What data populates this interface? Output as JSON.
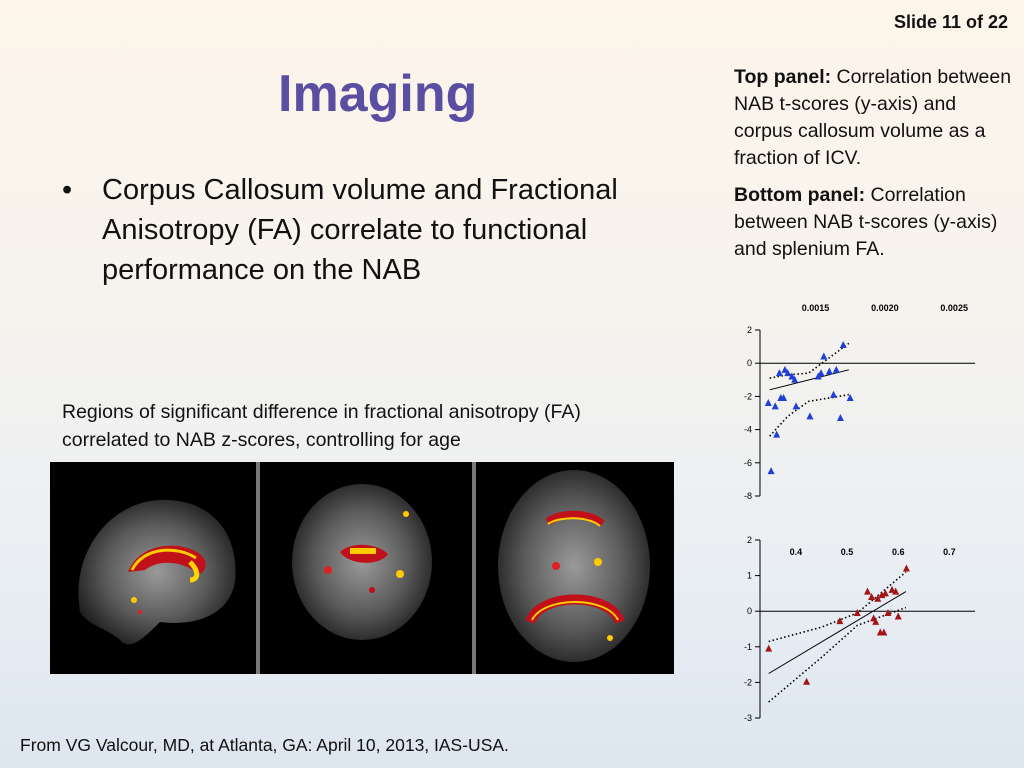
{
  "slide": {
    "number_label": "Slide 11 of 22",
    "title": "Imaging",
    "bullet": "Corpus Callosum volume and Fractional Anisotropy (FA) correlate to functional performance on the NAB",
    "image_caption": "Regions of significant difference in fractional anisotropy (FA) correlated to NAB z-scores, controlling for age",
    "top_panel": {
      "label": "Top panel:",
      "text": " Correlation between NAB t-scores (y-axis) and corpus callosum volume as a fraction of ICV."
    },
    "bottom_panel": {
      "label": "Bottom panel:",
      "text": " Correlation between NAB t-scores (y-axis) and splenium FA."
    },
    "footer": "From VG Valcour, MD, at Atlanta, GA: April 10, 2013, IAS-USA."
  },
  "colors": {
    "title": "#5a4ea3",
    "top_series": "#1f3fd6",
    "bottom_series": "#a31515"
  },
  "chart_data": [
    {
      "type": "scatter",
      "title": "",
      "xlabel": "",
      "ylabel": "",
      "x_ticks": [
        "0.0015",
        "0.0020",
        "0.0025"
      ],
      "x_tick_values": [
        0.0015,
        0.002,
        0.0025
      ],
      "y_ticks": [
        "2",
        "0",
        "-2",
        "-4",
        "-6",
        "-8"
      ],
      "xlim": [
        0.0011,
        0.00265
      ],
      "ylim": [
        -8,
        2
      ],
      "marker": "triangle",
      "color": "#1f3fd6",
      "series": [
        {
          "values": [
            [
              0.00118,
              -6.5
            ],
            [
              0.00116,
              -2.4
            ],
            [
              0.00121,
              -2.6
            ],
            [
              0.00122,
              -4.3
            ],
            [
              0.00124,
              -0.6
            ],
            [
              0.00125,
              -2.1
            ],
            [
              0.00127,
              -2.1
            ],
            [
              0.00128,
              -0.4
            ],
            [
              0.0013,
              -0.6
            ],
            [
              0.00133,
              -0.8
            ],
            [
              0.00135,
              -1.0
            ],
            [
              0.00136,
              -2.6
            ],
            [
              0.00146,
              -3.2
            ],
            [
              0.00152,
              -0.8
            ],
            [
              0.00154,
              -0.6
            ],
            [
              0.00156,
              0.4
            ],
            [
              0.0016,
              -0.5
            ],
            [
              0.00163,
              -1.9
            ],
            [
              0.00165,
              -0.4
            ],
            [
              0.00168,
              -3.3
            ],
            [
              0.0017,
              1.1
            ],
            [
              0.00175,
              -2.1
            ]
          ]
        }
      ],
      "fit_line": [
        [
          0.00117,
          -1.6
        ],
        [
          0.00174,
          -0.4
        ]
      ],
      "ci_upper": [
        [
          0.00117,
          -0.9
        ],
        [
          0.0013,
          -0.7
        ],
        [
          0.00145,
          -0.6
        ],
        [
          0.00174,
          1.2
        ]
      ],
      "ci_lower": [
        [
          0.00117,
          -4.4
        ],
        [
          0.0013,
          -3.2
        ],
        [
          0.00145,
          -2.3
        ],
        [
          0.00174,
          -1.9
        ]
      ]
    },
    {
      "type": "scatter",
      "title": "",
      "xlabel": "",
      "ylabel": "",
      "x_ticks": [
        "0.4",
        "0.5",
        "0.6",
        "0.7"
      ],
      "x_tick_values": [
        0.4,
        0.5,
        0.6,
        0.7
      ],
      "y_ticks": [
        "2",
        "1",
        "0",
        "-1",
        "-2",
        "-3"
      ],
      "xlim": [
        0.33,
        0.75
      ],
      "ylim": [
        -3,
        2
      ],
      "marker": "triangle",
      "color": "#a31515",
      "series": [
        {
          "values": [
            [
              0.347,
              -1.05
            ],
            [
              0.421,
              -1.98
            ],
            [
              0.486,
              -0.28
            ],
            [
              0.52,
              -0.05
            ],
            [
              0.54,
              0.55
            ],
            [
              0.548,
              0.4
            ],
            [
              0.552,
              -0.2
            ],
            [
              0.556,
              -0.3
            ],
            [
              0.56,
              0.35
            ],
            [
              0.565,
              -0.6
            ],
            [
              0.568,
              0.45
            ],
            [
              0.572,
              -0.6
            ],
            [
              0.575,
              0.5
            ],
            [
              0.58,
              -0.05
            ],
            [
              0.588,
              0.6
            ],
            [
              0.595,
              0.55
            ],
            [
              0.6,
              -0.15
            ],
            [
              0.616,
              1.2
            ]
          ]
        }
      ],
      "fit_line": [
        [
          0.347,
          -1.75
        ],
        [
          0.615,
          0.55
        ]
      ],
      "ci_upper": [
        [
          0.347,
          -0.85
        ],
        [
          0.45,
          -0.45
        ],
        [
          0.52,
          -0.05
        ],
        [
          0.615,
          1.1
        ]
      ],
      "ci_lower": [
        [
          0.347,
          -2.55
        ],
        [
          0.45,
          -1.3
        ],
        [
          0.52,
          -0.4
        ],
        [
          0.615,
          0.1
        ]
      ]
    }
  ]
}
